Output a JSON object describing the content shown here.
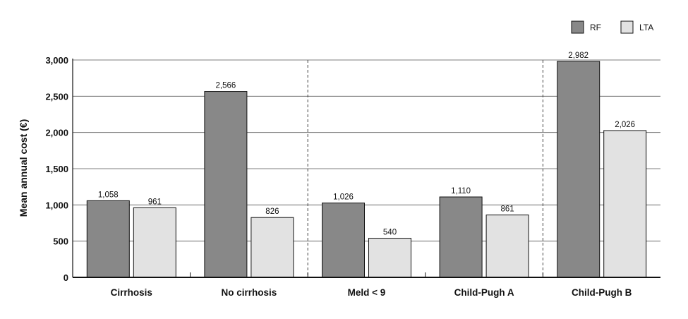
{
  "chart_data": {
    "type": "bar",
    "categories": [
      "Cirrhosis",
      "No cirrhosis",
      "Meld < 9",
      "Child-Pugh A",
      "Child-Pugh B"
    ],
    "series": [
      {
        "name": "RF",
        "values": [
          1058,
          2566,
          1026,
          1110,
          2982
        ],
        "color": "#888888"
      },
      {
        "name": "LTA",
        "values": [
          961,
          826,
          540,
          861,
          2026
        ],
        "color": "#e2e2e2"
      }
    ],
    "value_labels": [
      [
        "1,058",
        "2,566",
        "1,026",
        "1,110",
        "2,982"
      ],
      [
        "961",
        "826",
        "540",
        "861",
        "2,026"
      ]
    ],
    "ylabel": "Mean annual cost (€)",
    "ylim": [
      0,
      3000
    ],
    "yticks": [
      0,
      500,
      1000,
      1500,
      2000,
      2500,
      3000
    ],
    "ytick_labels": [
      "0",
      "500",
      "1,000",
      "1,500",
      "2,000",
      "2,500",
      "3,000"
    ],
    "grid": true,
    "legend_position": "top-right",
    "group_separators": [
      2,
      4
    ]
  }
}
